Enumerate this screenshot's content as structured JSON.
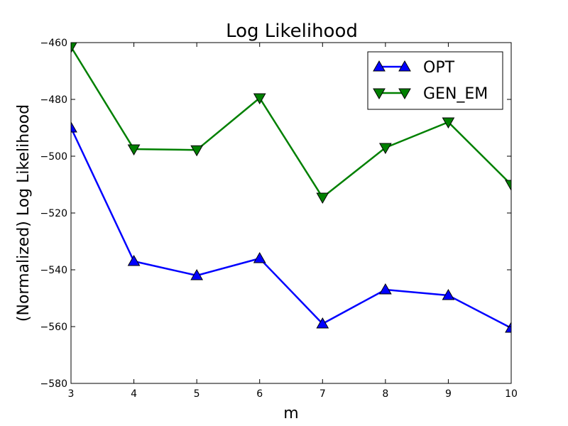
{
  "chart_data": {
    "type": "line",
    "title": "Log Likelihood",
    "xlabel": "m",
    "ylabel": "(Normalized) Log Likelihood",
    "x": [
      3,
      4,
      5,
      6,
      7,
      8,
      9,
      10
    ],
    "xlim": [
      3,
      10
    ],
    "ylim": [
      -580,
      -460
    ],
    "xticks": [
      3,
      4,
      5,
      6,
      7,
      8,
      9,
      10
    ],
    "yticks": [
      -460,
      -480,
      -500,
      -520,
      -540,
      -560,
      -580
    ],
    "grid": false,
    "legend_position": "top-right",
    "series": [
      {
        "name": "OPT",
        "color": "#0000ff",
        "marker": "triangle-up",
        "values": [
          -490,
          -537,
          -542,
          -536,
          -559,
          -547,
          -549,
          -560.5
        ]
      },
      {
        "name": "GEN_EM",
        "color": "#008000",
        "marker": "triangle-down",
        "values": [
          -461.5,
          -497.5,
          -497.8,
          -479.5,
          -514.5,
          -497,
          -488,
          -510
        ]
      }
    ]
  }
}
